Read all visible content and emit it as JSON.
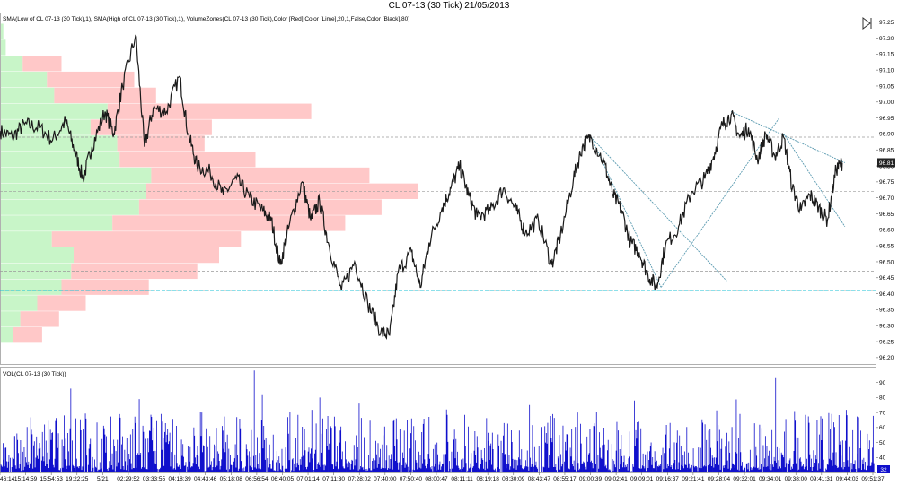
{
  "title": "CL 07-13 (30 Tick)  21/05/2013",
  "indicator_label": "SMA(Low of CL 07-13 (30 Tick),1), SMA(High of CL 07-13 (30 Tick),1), VolumeZones(CL 07-13 (30 Tick),Color [Red],Color [Lime],20,1,False,Color [Black],80)",
  "volume_label": "VOL(CL 07-13 (30 Tick))",
  "last_price_label": "96.81",
  "last_volume_label": "32",
  "colors": {
    "price_line": "#1a1a1a",
    "volume_bar": "#1010cc",
    "zone_sell": "#ffc8c8",
    "zone_buy": "#c8f5c8",
    "trendline": "#5a9ab0",
    "cyan_line": "#19c0d6",
    "dashed_level": "#9a9a9a",
    "last_price_box": "#222222"
  },
  "chart_data": [
    {
      "type": "line",
      "name": "price",
      "title": "CL 07-13 (30 Tick)  21/05/2013",
      "ylim": [
        96.18,
        97.28
      ],
      "yticks": [
        "97.25",
        "97.20",
        "97.15",
        "97.10",
        "97.05",
        "97.00",
        "96.95",
        "96.90",
        "96.85",
        "96.80",
        "96.75",
        "96.70",
        "96.65",
        "96.60",
        "96.55",
        "96.50",
        "96.45",
        "96.40",
        "96.35",
        "96.30",
        "96.25",
        "96.20"
      ],
      "xticks": [
        "46:14",
        "15:14:59",
        "15:54:53",
        "19:22:25",
        "5/21",
        "02:29:52",
        "03:33:55",
        "04:18:39",
        "04:43:46",
        "05:18:08",
        "06:56:54",
        "06:40:05",
        "07:01:14",
        "07:11:30",
        "07:28:02",
        "07:40:00",
        "07:50:40",
        "08:00:47",
        "08:11:11",
        "08:19:18",
        "08:30:09",
        "08:43:47",
        "08:55:17",
        "09:00:39",
        "09:02:41",
        "09:09:01",
        "09:16:37",
        "09:21:41",
        "09:28:04",
        "09:32:01",
        "09:34:01",
        "09:38:00",
        "09:41:31",
        "09:44:03",
        "09:51:37"
      ],
      "anchor_points": [
        [
          0,
          96.91
        ],
        [
          0.014,
          96.89
        ],
        [
          0.028,
          96.93
        ],
        [
          0.045,
          96.92
        ],
        [
          0.06,
          96.88
        ],
        [
          0.075,
          96.94
        ],
        [
          0.085,
          96.85
        ],
        [
          0.095,
          96.76
        ],
        [
          0.105,
          96.86
        ],
        [
          0.12,
          96.97
        ],
        [
          0.13,
          96.9
        ],
        [
          0.14,
          97.05
        ],
        [
          0.155,
          97.21
        ],
        [
          0.165,
          96.86
        ],
        [
          0.175,
          96.98
        ],
        [
          0.19,
          96.97
        ],
        [
          0.205,
          97.08
        ],
        [
          0.215,
          96.9
        ],
        [
          0.225,
          96.8
        ],
        [
          0.24,
          96.78
        ],
        [
          0.255,
          96.71
        ],
        [
          0.27,
          96.76
        ],
        [
          0.285,
          96.7
        ],
        [
          0.3,
          96.66
        ],
        [
          0.31,
          96.63
        ],
        [
          0.32,
          96.49
        ],
        [
          0.33,
          96.61
        ],
        [
          0.345,
          96.75
        ],
        [
          0.355,
          96.63
        ],
        [
          0.365,
          96.69
        ],
        [
          0.375,
          96.56
        ],
        [
          0.39,
          96.41
        ],
        [
          0.405,
          96.5
        ],
        [
          0.42,
          96.37
        ],
        [
          0.435,
          96.28
        ],
        [
          0.445,
          96.27
        ],
        [
          0.455,
          96.47
        ],
        [
          0.47,
          96.53
        ],
        [
          0.48,
          96.42
        ],
        [
          0.49,
          96.56
        ],
        [
          0.505,
          96.67
        ],
        [
          0.515,
          96.73
        ],
        [
          0.525,
          96.8
        ],
        [
          0.535,
          96.71
        ],
        [
          0.545,
          96.64
        ],
        [
          0.56,
          96.66
        ],
        [
          0.575,
          96.73
        ],
        [
          0.59,
          96.66
        ],
        [
          0.6,
          96.59
        ],
        [
          0.615,
          96.63
        ],
        [
          0.63,
          96.49
        ],
        [
          0.64,
          96.58
        ],
        [
          0.655,
          96.76
        ],
        [
          0.665,
          96.86
        ],
        [
          0.675,
          96.89
        ],
        [
          0.69,
          96.81
        ],
        [
          0.7,
          96.71
        ],
        [
          0.71,
          96.66
        ],
        [
          0.72,
          96.56
        ],
        [
          0.73,
          96.53
        ],
        [
          0.74,
          96.46
        ],
        [
          0.75,
          96.42
        ],
        [
          0.76,
          96.55
        ],
        [
          0.775,
          96.61
        ],
        [
          0.79,
          96.72
        ],
        [
          0.805,
          96.76
        ],
        [
          0.815,
          96.83
        ],
        [
          0.825,
          96.93
        ],
        [
          0.835,
          96.96
        ],
        [
          0.845,
          96.89
        ],
        [
          0.855,
          96.92
        ],
        [
          0.865,
          96.82
        ],
        [
          0.875,
          96.9
        ],
        [
          0.885,
          96.83
        ],
        [
          0.895,
          96.89
        ],
        [
          0.905,
          96.73
        ],
        [
          0.915,
          96.66
        ],
        [
          0.925,
          96.71
        ],
        [
          0.935,
          96.67
        ],
        [
          0.945,
          96.63
        ],
        [
          0.955,
          96.79
        ],
        [
          0.962,
          96.81
        ]
      ],
      "levels": [
        96.89,
        96.72,
        96.47,
        96.41
      ],
      "cyan_level": 96.41,
      "trendlines": [
        {
          "from": [
            0.675,
            96.89
          ],
          "to": [
            0.755,
            96.42
          ]
        },
        {
          "from": [
            0.675,
            96.89
          ],
          "to": [
            0.83,
            96.44
          ]
        },
        {
          "from": [
            0.755,
            96.42
          ],
          "to": [
            0.89,
            96.95
          ]
        },
        {
          "from": [
            0.835,
            96.97
          ],
          "to": [
            0.965,
            96.81
          ]
        },
        {
          "from": [
            0.895,
            96.9
          ],
          "to": [
            0.965,
            96.61
          ]
        }
      ]
    },
    {
      "type": "bar",
      "name": "volume_zones",
      "price_levels": [
        97.22,
        97.17,
        97.12,
        97.07,
        97.02,
        96.97,
        96.92,
        96.87,
        96.82,
        96.77,
        96.72,
        96.67,
        96.62,
        96.57,
        96.52,
        96.47,
        96.42,
        96.37,
        96.32,
        96.27
      ],
      "sell": [
        0,
        0,
        0.08,
        0.18,
        0.21,
        0.42,
        0.25,
        0.18,
        0.28,
        0.45,
        0.56,
        0.5,
        0.48,
        0.39,
        0.3,
        0.26,
        0.18,
        0.1,
        0.08,
        0.06
      ],
      "buy": [
        0.01,
        0.02,
        0.09,
        0.19,
        0.22,
        0.44,
        0.37,
        0.48,
        0.49,
        0.62,
        0.6,
        0.57,
        0.46,
        0.21,
        0.3,
        0.29,
        0.25,
        0.15,
        0.08,
        0.05
      ]
    },
    {
      "type": "bar",
      "name": "volume",
      "title": "VOL(CL 07-13 (30 Tick))",
      "ylim": [
        30,
        100
      ],
      "yticks": [
        "90",
        "80",
        "70",
        "60",
        "50",
        "40"
      ],
      "bar_count": 1200,
      "spikes": [
        [
          0.08,
          86
        ],
        [
          0.158,
          79
        ],
        [
          0.29,
          98
        ],
        [
          0.365,
          80
        ],
        [
          0.41,
          76
        ],
        [
          0.51,
          72
        ],
        [
          0.605,
          75
        ],
        [
          0.725,
          78
        ],
        [
          0.76,
          73
        ],
        [
          0.887,
          93
        ],
        [
          0.23,
          70
        ],
        [
          0.47,
          66
        ],
        [
          0.66,
          70
        ],
        [
          0.94,
          66
        ],
        [
          0.05,
          62
        ]
      ]
    }
  ]
}
